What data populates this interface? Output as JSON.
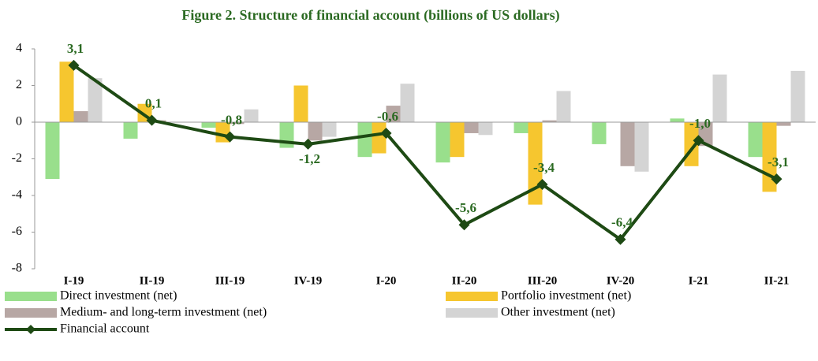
{
  "chart_data": {
    "type": "bar",
    "title": "Figure 2. Structure of financial account  (billions of  US  dollars)",
    "categories": [
      "I-19",
      "II-19",
      "III-19",
      "IV-19",
      "I-20",
      "II-20",
      "III-20",
      "IV-20",
      "I-21",
      "II-21"
    ],
    "series": [
      {
        "name": "Direct investment (net)",
        "color": "#99df8c",
        "values": [
          -3.1,
          -0.9,
          -0.3,
          -1.4,
          -1.9,
          -2.2,
          -0.6,
          -1.2,
          0.2,
          -1.9
        ]
      },
      {
        "name": "Portfolio investment (net)",
        "color": "#f6c62f",
        "values": [
          3.3,
          1.0,
          -1.1,
          2.0,
          -1.7,
          -1.9,
          -4.5,
          0,
          -2.4,
          -3.8
        ]
      },
      {
        "name": "Medium- and long-term investment (net)",
        "color": "#b7a7a4",
        "values": [
          0.6,
          0.1,
          -0.1,
          -1.0,
          0.9,
          -0.6,
          0.1,
          -2.4,
          -1.3,
          -0.2
        ]
      },
      {
        "name": "Other investment (net)",
        "color": "#d4d4d4",
        "values": [
          2.4,
          0,
          0.7,
          -0.8,
          2.1,
          -0.7,
          1.7,
          -2.7,
          2.6,
          2.8
        ]
      },
      {
        "name": "Financial account",
        "type": "line",
        "color": "#1e4a14",
        "values": [
          3.1,
          0.1,
          -0.8,
          -1.2,
          -0.6,
          -5.6,
          -3.4,
          -6.4,
          -1.0,
          -3.1
        ],
        "value_labels": [
          "3,1",
          "0,1",
          "-0,8",
          "-1,2",
          "-0,6",
          "-5,6",
          "-3,4",
          "-6,4",
          "-1,0",
          "-3,1"
        ]
      }
    ],
    "ylim": [
      -8,
      4
    ],
    "yticks": [
      4,
      2,
      0,
      -2,
      -4,
      -6,
      -8
    ]
  }
}
